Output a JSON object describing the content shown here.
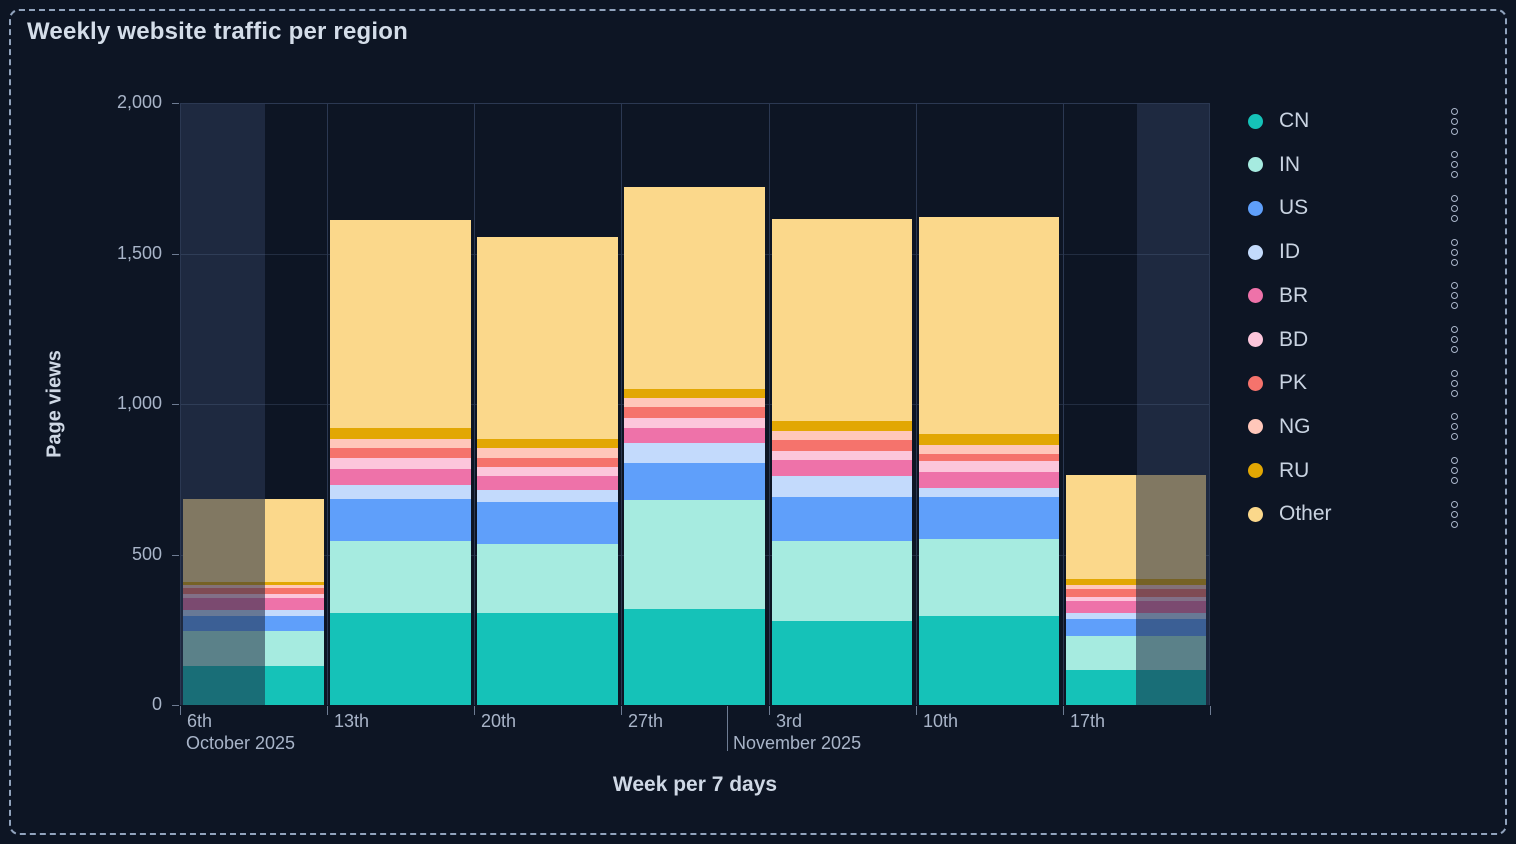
{
  "panel": {
    "title": "Weekly website traffic per region"
  },
  "axes": {
    "y_title": "Page views",
    "x_title": "Week per 7 days",
    "y_tick_labels": [
      "0",
      "500",
      "1,000",
      "1,500",
      "2,000"
    ],
    "y_tick_values": [
      0,
      500,
      1000,
      1500,
      2000
    ],
    "x_day_labels": [
      "6th",
      "13th",
      "20th",
      "27th",
      "3rd",
      "10th",
      "17th"
    ],
    "x_month_labels": [
      "October 2025",
      "November 2025"
    ]
  },
  "legend": {
    "items": [
      {
        "label": "CN",
        "color": "#15c2b8"
      },
      {
        "label": "IN",
        "color": "#a6ebe0"
      },
      {
        "label": "US",
        "color": "#5f9ffa"
      },
      {
        "label": "ID",
        "color": "#c3dafc"
      },
      {
        "label": "BR",
        "color": "#ee72a9"
      },
      {
        "label": "BD",
        "color": "#fcc6db"
      },
      {
        "label": "PK",
        "color": "#f5736c"
      },
      {
        "label": "NG",
        "color": "#ffc7ba"
      },
      {
        "label": "RU",
        "color": "#e2a703"
      },
      {
        "label": "Other",
        "color": "#fbd88b"
      }
    ],
    "kebab_icon": "three-dots-menu"
  },
  "chart_data": {
    "type": "bar",
    "stacked": true,
    "title": "Weekly website traffic per region",
    "xlabel": "Week per 7 days",
    "ylabel": "Page views",
    "ylim": [
      0,
      2000
    ],
    "grid": true,
    "legend_position": "right",
    "categories": [
      "Oct 6, 2025",
      "Oct 13, 2025",
      "Oct 20, 2025",
      "Oct 27, 2025",
      "Nov 3, 2025",
      "Nov 10, 2025",
      "Nov 17, 2025"
    ],
    "series": [
      {
        "name": "CN",
        "color": "#15c2b8",
        "values": [
          130,
          305,
          305,
          320,
          280,
          295,
          115
        ]
      },
      {
        "name": "IN",
        "color": "#a6ebe0",
        "values": [
          115,
          240,
          230,
          360,
          265,
          255,
          115
        ]
      },
      {
        "name": "US",
        "color": "#5f9ffa",
        "values": [
          50,
          140,
          140,
          125,
          145,
          140,
          55
        ]
      },
      {
        "name": "ID",
        "color": "#c3dafc",
        "values": [
          20,
          45,
          40,
          65,
          70,
          30,
          20
        ]
      },
      {
        "name": "BR",
        "color": "#ee72a9",
        "values": [
          40,
          55,
          45,
          50,
          55,
          55,
          40
        ]
      },
      {
        "name": "BD",
        "color": "#fcc6db",
        "values": [
          15,
          35,
          30,
          35,
          30,
          35,
          15
        ]
      },
      {
        "name": "PK",
        "color": "#f5736c",
        "values": [
          20,
          35,
          30,
          35,
          35,
          25,
          25
        ]
      },
      {
        "name": "NG",
        "color": "#ffc7ba",
        "values": [
          10,
          30,
          35,
          30,
          30,
          30,
          15
        ]
      },
      {
        "name": "RU",
        "color": "#e2a703",
        "values": [
          10,
          35,
          30,
          30,
          35,
          35,
          20
        ]
      },
      {
        "name": "Other",
        "color": "#fbd88b",
        "values": [
          275,
          690,
          670,
          670,
          670,
          720,
          345
        ]
      }
    ],
    "totals": [
      685,
      1610,
      1555,
      1720,
      1615,
      1620,
      765
    ],
    "partial_weeks": [
      {
        "category": "Oct 6, 2025",
        "category_index": 0,
        "dimmed_side": "left",
        "dimmed_fraction": 0.58
      },
      {
        "category": "Nov 17, 2025",
        "category_index": 6,
        "dimmed_side": "right",
        "dimmed_fraction": 0.5
      }
    ]
  }
}
